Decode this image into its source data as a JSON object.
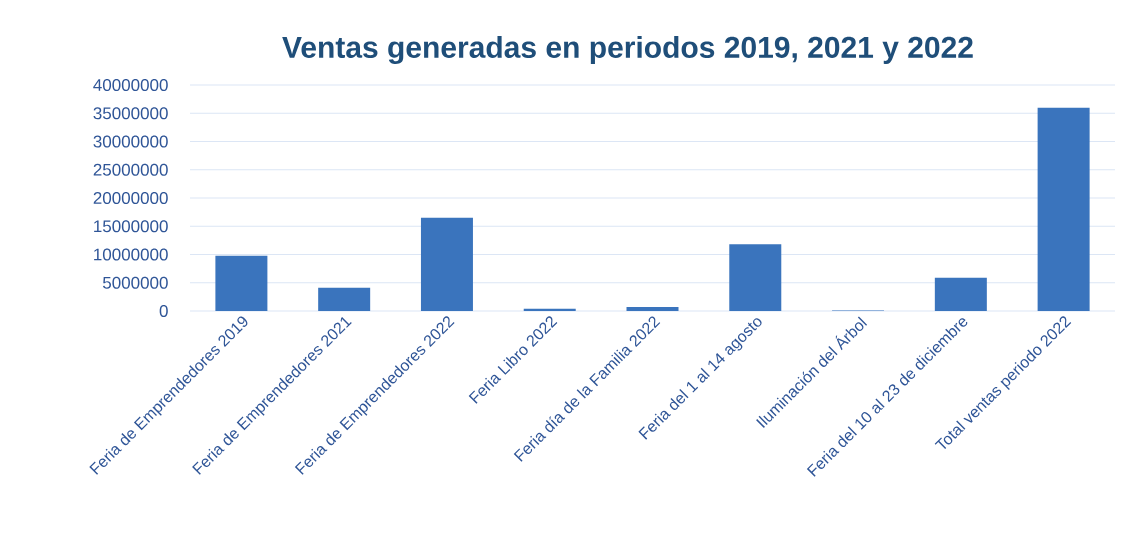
{
  "chart_data": {
    "type": "bar",
    "title": "Ventas generadas en periodos 2019, 2021 y 2022",
    "categories": [
      "Feria de Emprendedores 2019",
      "Feria de Emprendedores 2021",
      "Feria de Emprendedores 2022",
      "Feria Libro 2022",
      "Feria día de la Familia 2022",
      "Feria del 1 al 14 agosto",
      "Iluminación del Árbol",
      "Feria del 10 al 23 de diciembre",
      "Total ventas periodo 2022"
    ],
    "values": [
      9800000,
      4100000,
      16500000,
      400000,
      700000,
      11800000,
      100000,
      5900000,
      36000000
    ],
    "color": "#3a74bd",
    "ylim": [
      0,
      40000000
    ],
    "yticks": [
      0,
      5000000,
      10000000,
      15000000,
      20000000,
      25000000,
      30000000,
      35000000,
      40000000
    ],
    "grid": "y"
  }
}
